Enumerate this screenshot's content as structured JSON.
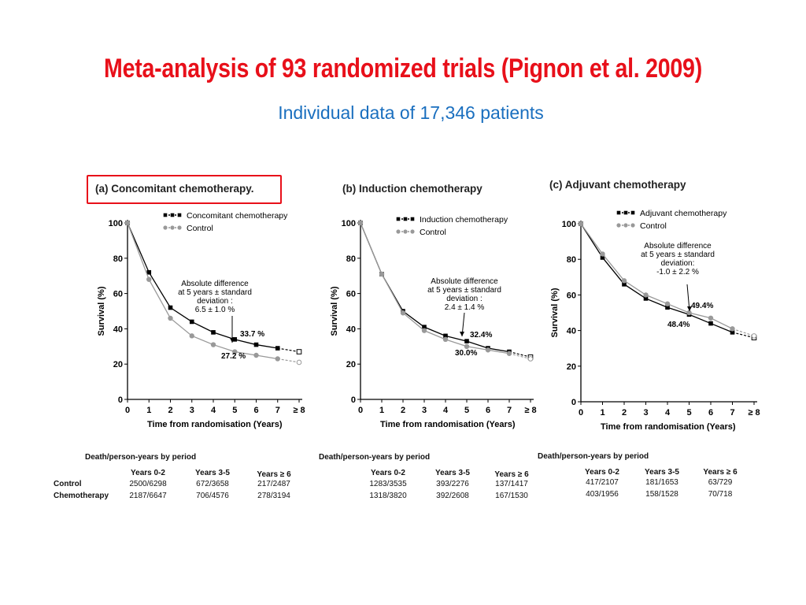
{
  "slide": {
    "title": "Meta-analysis of 93 randomized trials (Pignon et al. 2009)",
    "subtitle": "Individual data of 17,346 patients",
    "colors": {
      "title": "#e8101a",
      "subtitle": "#1a6fbf",
      "chemo": "#000000",
      "control": "#999999"
    }
  },
  "chart_data": [
    {
      "type": "line",
      "title": "(a) Concomitant chemotherapy.",
      "xlabel": "Time from randomisation (Years)",
      "ylabel": "Survival (%)",
      "x_ticks": [
        "0",
        "1",
        "2",
        "3",
        "4",
        "5",
        "6",
        "7",
        "≥ 8"
      ],
      "y_ticks": [
        "0",
        "20",
        "40",
        "60",
        "80",
        "100"
      ],
      "ylim": [
        0,
        100
      ],
      "xlim": [
        0,
        8
      ],
      "series": [
        {
          "name": "Concomitant chemotherapy",
          "x": [
            0,
            1,
            2,
            3,
            4,
            5,
            6,
            7,
            8
          ],
          "values": [
            100,
            72,
            52,
            44,
            38,
            34,
            31,
            29,
            27
          ]
        },
        {
          "name": "Control",
          "x": [
            0,
            1,
            2,
            3,
            4,
            5,
            6,
            7,
            8
          ],
          "values": [
            100,
            68,
            46,
            36,
            31,
            27,
            25,
            23,
            21
          ]
        }
      ],
      "annotation": {
        "l1": "Absolute difference",
        "l2": "at 5 years ±  standard",
        "l3": "deviation :",
        "l4": "6.5 ± 1.0 %"
      },
      "label_chemo": "33.7 %",
      "label_control": "27.2 %",
      "table": {
        "heading": "Death/person-years by period",
        "columns": [
          "Years 0-2",
          "Years 3-5",
          "Years ≥ 6"
        ],
        "rows": [
          {
            "label": "Control",
            "cells": [
              "2500/6298",
              "672/3658",
              "217/2487"
            ]
          },
          {
            "label": "Chemotherapy",
            "cells": [
              "2187/6647",
              "706/4576",
              "278/3194"
            ]
          }
        ]
      }
    },
    {
      "type": "line",
      "title": "(b)  Induction chemotherapy",
      "xlabel": "Time from randomisation (Years)",
      "ylabel": "Survival (%)",
      "x_ticks": [
        "0",
        "1",
        "2",
        "3",
        "4",
        "5",
        "6",
        "7",
        "≥ 8"
      ],
      "y_ticks": [
        "0",
        "20",
        "40",
        "60",
        "80",
        "100"
      ],
      "ylim": [
        0,
        100
      ],
      "xlim": [
        0,
        8
      ],
      "series": [
        {
          "name": "Induction chemotherapy",
          "x": [
            0,
            1,
            2,
            3,
            4,
            5,
            6,
            7,
            8
          ],
          "values": [
            100,
            71,
            50,
            41,
            36,
            33,
            29,
            27,
            24
          ]
        },
        {
          "name": "Control",
          "x": [
            0,
            1,
            2,
            3,
            4,
            5,
            6,
            7,
            8
          ],
          "values": [
            100,
            71,
            49,
            39,
            34,
            30,
            28,
            26,
            23
          ]
        }
      ],
      "annotation": {
        "l1": "Absolute difference",
        "l2": "at 5 years ±  standard",
        "l3": "deviation :",
        "l4": "2.4 ± 1.4 %"
      },
      "label_chemo": "32.4%",
      "label_control": "30.0%",
      "table": {
        "heading": "Death/person-years by period",
        "columns": [
          "Years 0-2",
          "Years 3-5",
          "Years ≥ 6"
        ],
        "rows": [
          {
            "label": "",
            "cells": [
              "1283/3535",
              "393/2276",
              "137/1417"
            ]
          },
          {
            "label": "",
            "cells": [
              "1318/3820",
              "392/2608",
              "167/1530"
            ]
          }
        ]
      }
    },
    {
      "type": "line",
      "title": "(c) Adjuvant chemotherapy",
      "xlabel": "Time from randomisation (Years)",
      "ylabel": "Survival (%)",
      "x_ticks": [
        "0",
        "1",
        "2",
        "3",
        "4",
        "5",
        "6",
        "7",
        "≥ 8"
      ],
      "y_ticks": [
        "0",
        "20",
        "40",
        "60",
        "80",
        "100"
      ],
      "ylim": [
        0,
        100
      ],
      "xlim": [
        0,
        8
      ],
      "series": [
        {
          "name": "Adjuvant chemotherapy",
          "x": [
            0,
            1,
            2,
            3,
            4,
            5,
            6,
            7,
            8
          ],
          "values": [
            100,
            81,
            66,
            58,
            53,
            49,
            44,
            39,
            36
          ]
        },
        {
          "name": "Control",
          "x": [
            0,
            1,
            2,
            3,
            4,
            5,
            6,
            7,
            8
          ],
          "values": [
            100,
            83,
            68,
            60,
            55,
            50,
            47,
            41,
            37
          ]
        }
      ],
      "annotation": {
        "l1": "Absolute difference",
        "l2": "at 5 years ±  standard",
        "l3": "deviation:",
        "l4": "-1.0 ± 2.2 %"
      },
      "label_chemo": "48.4%",
      "label_control": "49.4%",
      "table": {
        "heading": "Death/person-years by period",
        "columns": [
          "Years 0-2",
          "Years 3-5",
          "Years ≥ 6"
        ],
        "rows": [
          {
            "label": "",
            "cells": [
              "417/2107",
              "181/1653",
              "63/729"
            ]
          },
          {
            "label": "",
            "cells": [
              "403/1956",
              "158/1528",
              "70/718"
            ]
          }
        ]
      }
    }
  ]
}
